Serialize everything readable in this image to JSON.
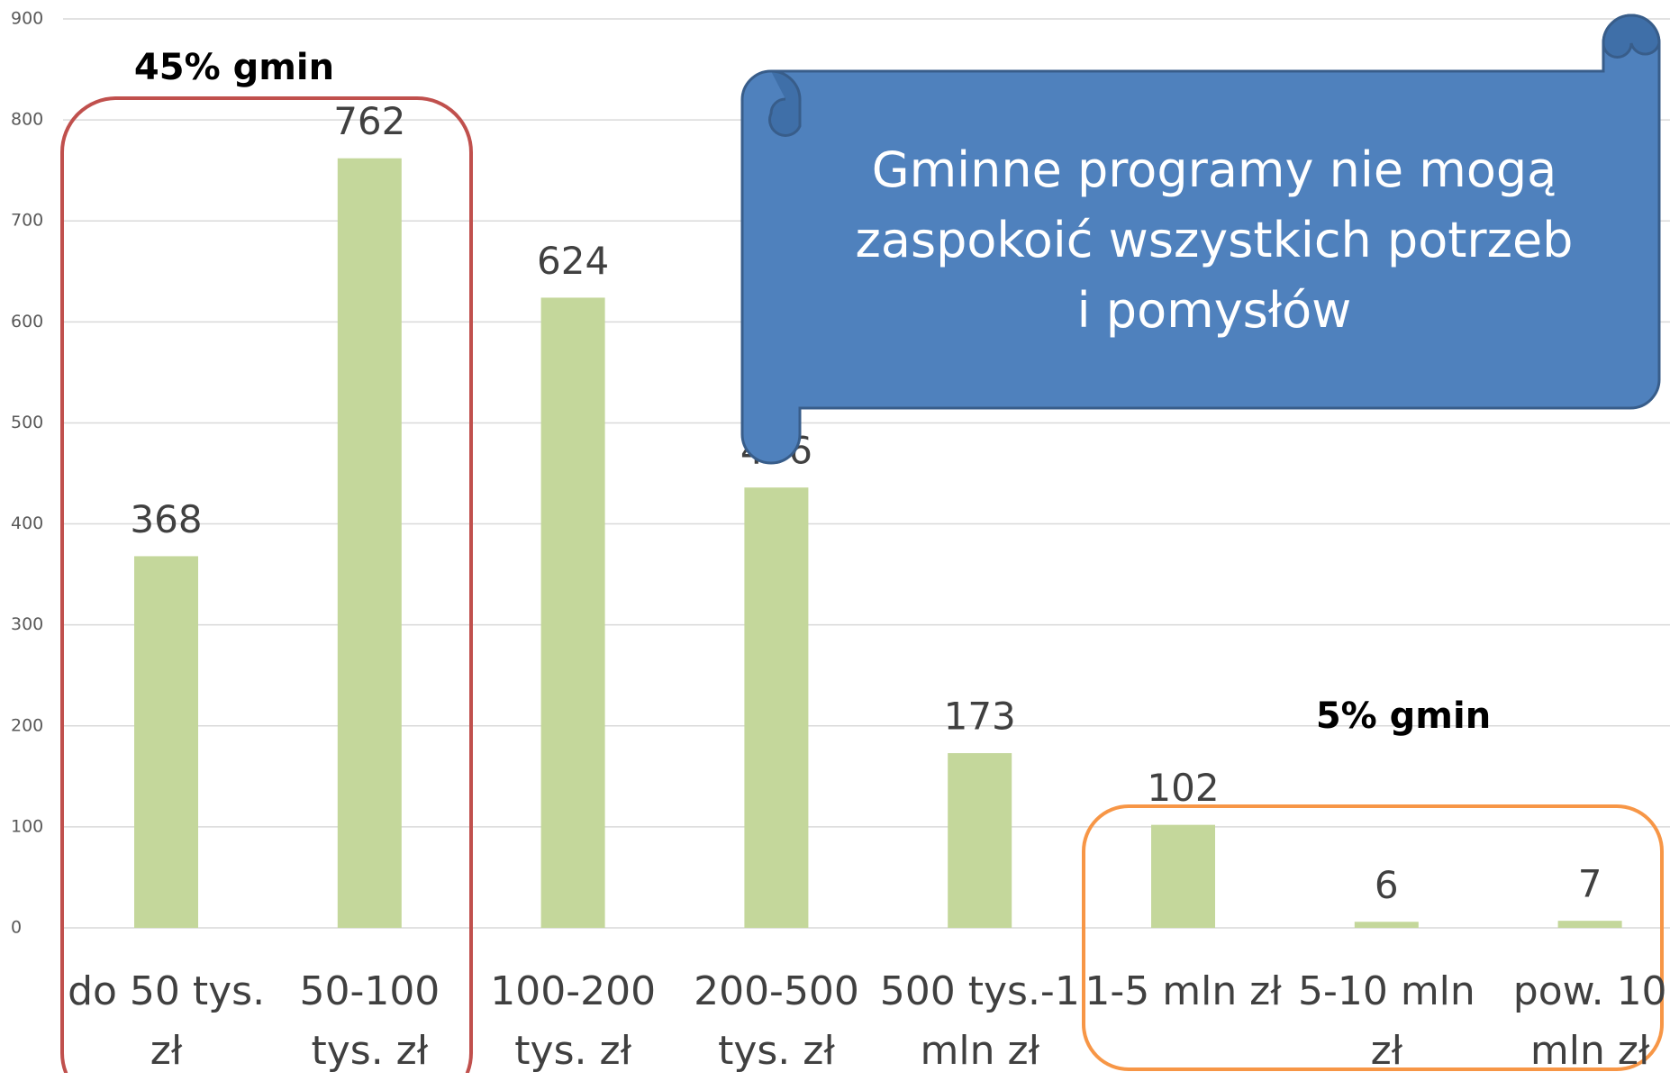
{
  "chart_data": {
    "type": "bar",
    "categories": [
      "do 50 tys. zł",
      "50-100 tys. zł",
      "100-200 tys. zł",
      "200-500 tys. zł",
      "500 tys.-1 mln zł",
      "1-5 mln zł",
      "5-10 mln zł",
      "pow. 10 mln zł"
    ],
    "values": [
      368,
      762,
      624,
      436,
      173,
      102,
      6,
      7
    ],
    "color": "#c4d79b",
    "ylim": [
      0,
      900
    ],
    "yticks": [
      0,
      100,
      200,
      300,
      400,
      500,
      600,
      700,
      800,
      900
    ],
    "grid": true,
    "annotations": [
      "45% gmin",
      "5% gmin",
      "Gminne programy nie mogą zaspokoić wszystkich potrzeb i pomysłów"
    ]
  }
}
